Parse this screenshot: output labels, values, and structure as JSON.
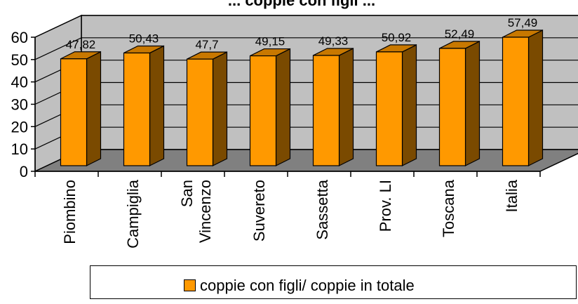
{
  "chart_data": {
    "type": "bar",
    "title": "... coppie con figli ...",
    "categories": [
      "Piombino",
      "Campiglia",
      "San Vincenzo",
      "Suvereto",
      "Sassetta",
      "Prov. LI",
      "Toscana",
      "Italia"
    ],
    "category_lines": [
      [
        "Piombino"
      ],
      [
        "Campiglia"
      ],
      [
        "San",
        "Vincenzo"
      ],
      [
        "Suvereto"
      ],
      [
        "Sassetta"
      ],
      [
        "Prov. LI"
      ],
      [
        "Toscana"
      ],
      [
        "Italia"
      ]
    ],
    "values": [
      47.82,
      50.43,
      47.7,
      49.15,
      49.33,
      50.92,
      52.49,
      57.49
    ],
    "value_labels": [
      "47,82",
      "50,43",
      "47,7",
      "49,15",
      "49,33",
      "50,92",
      "52,49",
      "57,49"
    ],
    "series": [
      {
        "name": "coppie con figli/ coppie in totale",
        "values": [
          47.82,
          50.43,
          47.7,
          49.15,
          49.33,
          50.92,
          52.49,
          57.49
        ]
      }
    ],
    "ylim": [
      0,
      60
    ],
    "yticks": [
      0,
      10,
      20,
      30,
      40,
      50,
      60
    ],
    "grid": true,
    "three_d": true,
    "legend_position": "bottom",
    "colors": {
      "bar_front": "#ff9900",
      "bar_side": "#7a4a00",
      "bar_top": "#c87800",
      "back_wall": "#c0c0c0",
      "floor": "#808080",
      "edge": "#000000"
    }
  }
}
